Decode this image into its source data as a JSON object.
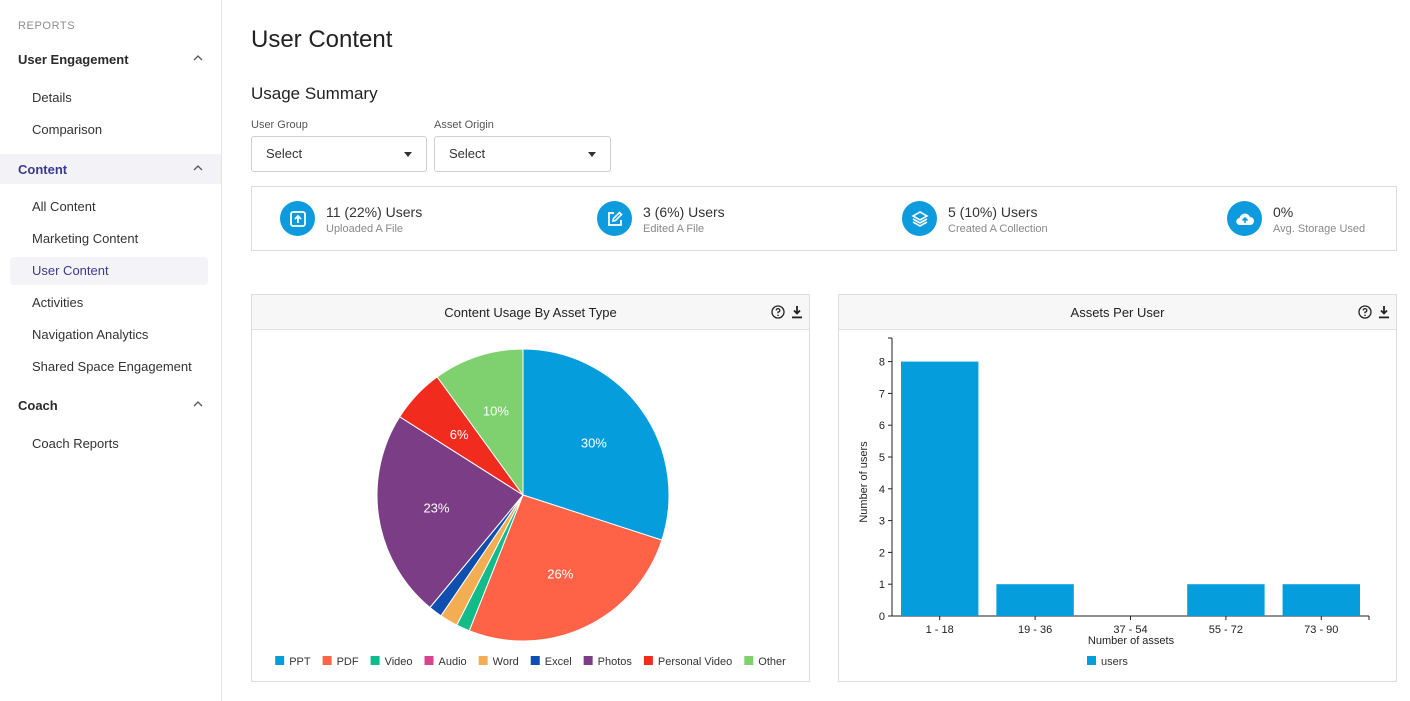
{
  "sidebar": {
    "heading": "REPORTS",
    "sections": [
      {
        "label": "User Engagement",
        "items": [
          "Details",
          "Comparison"
        ]
      },
      {
        "label": "Content",
        "items": [
          "All Content",
          "Marketing Content",
          "User Content",
          "Activities",
          "Navigation Analytics",
          "Shared Space Engagement"
        ]
      },
      {
        "label": "Coach",
        "items": [
          "Coach Reports"
        ]
      }
    ]
  },
  "main": {
    "title": "User Content",
    "summary_title": "Usage Summary",
    "filters": [
      {
        "label": "User Group",
        "value": "Select"
      },
      {
        "label": "Asset Origin",
        "value": "Select"
      }
    ],
    "stats": [
      {
        "value": "11 (22%) Users",
        "label": "Uploaded A File",
        "icon": "upload-icon"
      },
      {
        "value": "3 (6%) Users",
        "label": "Edited A File",
        "icon": "edit-icon"
      },
      {
        "value": "5 (10%) Users",
        "label": "Created A Collection",
        "icon": "layers-icon"
      },
      {
        "value": "0%",
        "label": "Avg. Storage Used",
        "icon": "cloud-upload-icon"
      }
    ]
  },
  "colors": {
    "accent": "#0d9bdd",
    "active_nav": "#3b3a8f"
  },
  "chart_data": [
    {
      "type": "pie",
      "title": "Content Usage By Asset Type",
      "legend_position": "bottom",
      "slices": [
        {
          "name": "PPT",
          "value": 30,
          "label": "30%",
          "color": "#069ddd"
        },
        {
          "name": "PDF",
          "value": 26,
          "label": "26%",
          "color": "#ff6347"
        },
        {
          "name": "Video",
          "value": 1.5,
          "label": "",
          "color": "#11bb8a"
        },
        {
          "name": "Audio",
          "value": 0,
          "label": "",
          "color": "#d9438c"
        },
        {
          "name": "Word",
          "value": 2,
          "label": "",
          "color": "#f3ad52"
        },
        {
          "name": "Excel",
          "value": 1.5,
          "label": "",
          "color": "#0f4fb0"
        },
        {
          "name": "Photos",
          "value": 23,
          "label": "23%",
          "color": "#7b3d85"
        },
        {
          "name": "Personal Video",
          "value": 6,
          "label": "6%",
          "color": "#f12b1d"
        },
        {
          "name": "Other",
          "value": 10,
          "label": "10%",
          "color": "#7fd06e"
        }
      ]
    },
    {
      "type": "bar",
      "title": "Assets Per User",
      "xlabel": "Number of assets",
      "ylabel": "Number of users",
      "categories": [
        "1 - 18",
        "19 - 36",
        "37 - 54",
        "55 - 72",
        "73 - 90"
      ],
      "series": [
        {
          "name": "users",
          "values": [
            8,
            1,
            0,
            1,
            1
          ],
          "color": "#069ddd"
        }
      ],
      "ylim": [
        0,
        8
      ],
      "yticks": [
        0,
        1,
        2,
        3,
        4,
        5,
        6,
        7,
        8
      ],
      "legend_position": "bottom"
    }
  ]
}
